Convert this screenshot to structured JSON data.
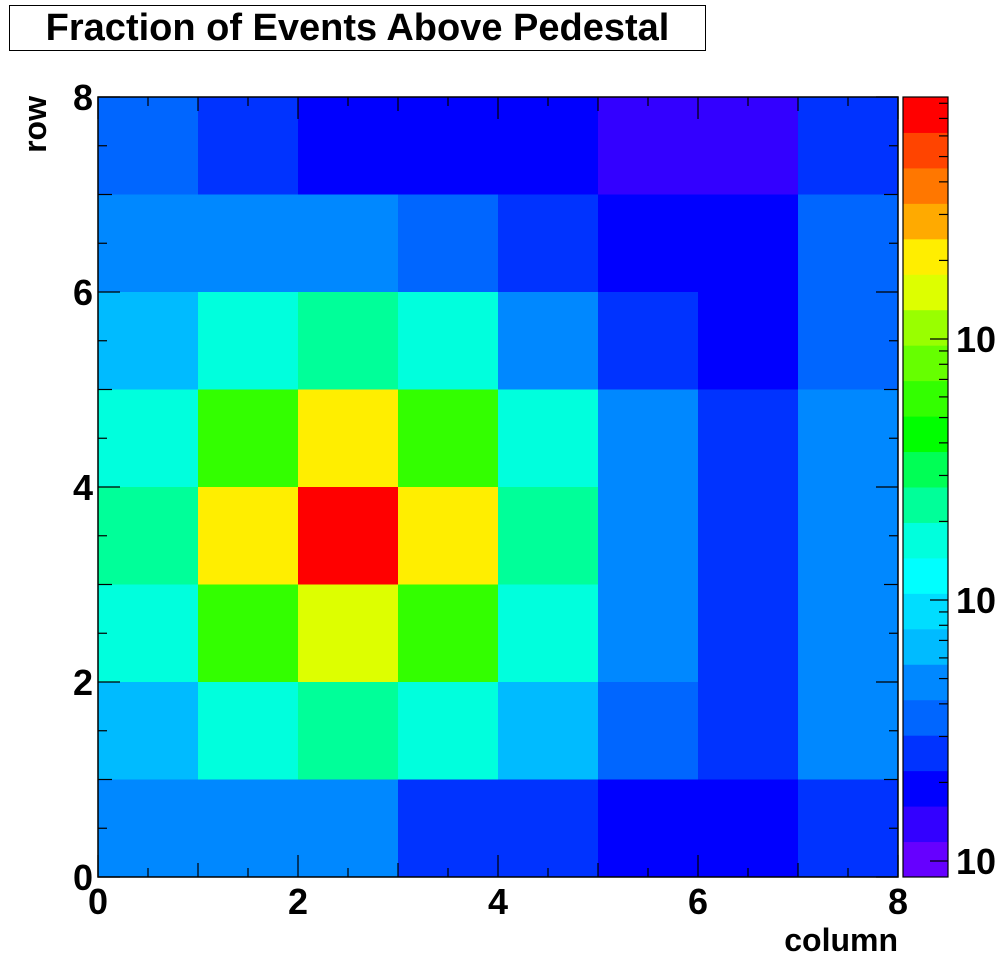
{
  "chart_data": {
    "type": "heatmap",
    "title": "Fraction of Events Above Pedestal",
    "xlabel": "column",
    "ylabel": "row",
    "xlim": [
      0,
      8
    ],
    "ylim": [
      0,
      8
    ],
    "x_tick_labels": [
      "0",
      "2",
      "4",
      "6",
      "8"
    ],
    "y_tick_labels": [
      "0",
      "2",
      "4",
      "6",
      "8"
    ],
    "colorbar_tick_labels": [
      "10",
      "10",
      "10"
    ],
    "colorbar_log_scale": true,
    "palette": [
      "#6600ff",
      "#3300ff",
      "#0000ff",
      "#0033ff",
      "#0066ff",
      "#0088ff",
      "#00bbff",
      "#00ddff",
      "#00ffff",
      "#00ffdd",
      "#00ff99",
      "#00ff55",
      "#00ff00",
      "#33ff00",
      "#66ff00",
      "#99ff00",
      "#ddff00",
      "#ffee00",
      "#ffaa00",
      "#ff7700",
      "#ff4400",
      "#ff0000"
    ],
    "grid_levels": [
      [
        4,
        3,
        2,
        2,
        2,
        1,
        1,
        3
      ],
      [
        5,
        5,
        5,
        4,
        3,
        2,
        2,
        4
      ],
      [
        6,
        9,
        10,
        9,
        5,
        3,
        2,
        4
      ],
      [
        9,
        13,
        17,
        13,
        9,
        5,
        3,
        5
      ],
      [
        10,
        17,
        21,
        17,
        10,
        5,
        3,
        5
      ],
      [
        9,
        13,
        16,
        13,
        9,
        5,
        3,
        5
      ],
      [
        6,
        9,
        10,
        9,
        6,
        4,
        3,
        5
      ],
      [
        5,
        5,
        5,
        3,
        3,
        2,
        2,
        3
      ]
    ]
  }
}
